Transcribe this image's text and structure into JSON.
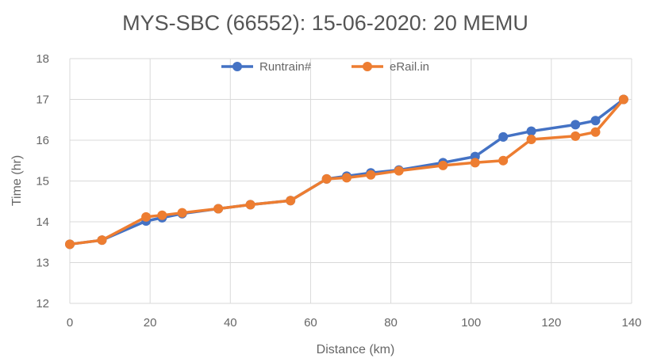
{
  "chart_data": {
    "type": "line",
    "title": "MYS-SBC (66552): 15-06-2020: 20 MEMU",
    "xlabel": "Distance (km)",
    "ylabel": "Time (hr)",
    "xlim": [
      0,
      140
    ],
    "ylim": [
      12,
      18
    ],
    "xticks": [
      0,
      20,
      40,
      60,
      80,
      100,
      120,
      140
    ],
    "yticks": [
      12,
      13,
      14,
      15,
      16,
      17,
      18
    ],
    "xtick_labels": [
      "0",
      "20",
      "40",
      "60",
      "80",
      "100",
      "120",
      "140"
    ],
    "ytick_labels": [
      "12",
      "13",
      "14",
      "15",
      "16",
      "17",
      "18"
    ],
    "grid": true,
    "legend_position": "top",
    "series": [
      {
        "name": "Runtrain#",
        "color": "#4472c4",
        "points": [
          [
            0,
            13.45
          ],
          [
            8,
            13.55
          ],
          [
            19,
            14.02
          ],
          [
            23,
            14.1
          ],
          [
            28,
            14.2
          ],
          [
            37,
            14.32
          ],
          [
            45,
            14.42
          ],
          [
            55,
            14.52
          ],
          [
            64,
            15.05
          ],
          [
            69,
            15.12
          ],
          [
            75,
            15.2
          ],
          [
            82,
            15.27
          ],
          [
            93,
            15.45
          ],
          [
            101,
            15.6
          ],
          [
            108,
            16.08
          ],
          [
            115,
            16.22
          ],
          [
            126,
            16.38
          ],
          [
            131,
            16.48
          ],
          [
            138,
            17.0
          ]
        ]
      },
      {
        "name": "eRail.in",
        "color": "#ed7d31",
        "points": [
          [
            0,
            13.45
          ],
          [
            8,
            13.55
          ],
          [
            19,
            14.12
          ],
          [
            23,
            14.16
          ],
          [
            28,
            14.22
          ],
          [
            37,
            14.32
          ],
          [
            45,
            14.42
          ],
          [
            55,
            14.52
          ],
          [
            64,
            15.05
          ],
          [
            69,
            15.08
          ],
          [
            75,
            15.15
          ],
          [
            82,
            15.25
          ],
          [
            93,
            15.38
          ],
          [
            101,
            15.45
          ],
          [
            108,
            15.5
          ],
          [
            115,
            16.02
          ],
          [
            126,
            16.1
          ],
          [
            131,
            16.2
          ],
          [
            138,
            17.0
          ]
        ]
      }
    ]
  }
}
